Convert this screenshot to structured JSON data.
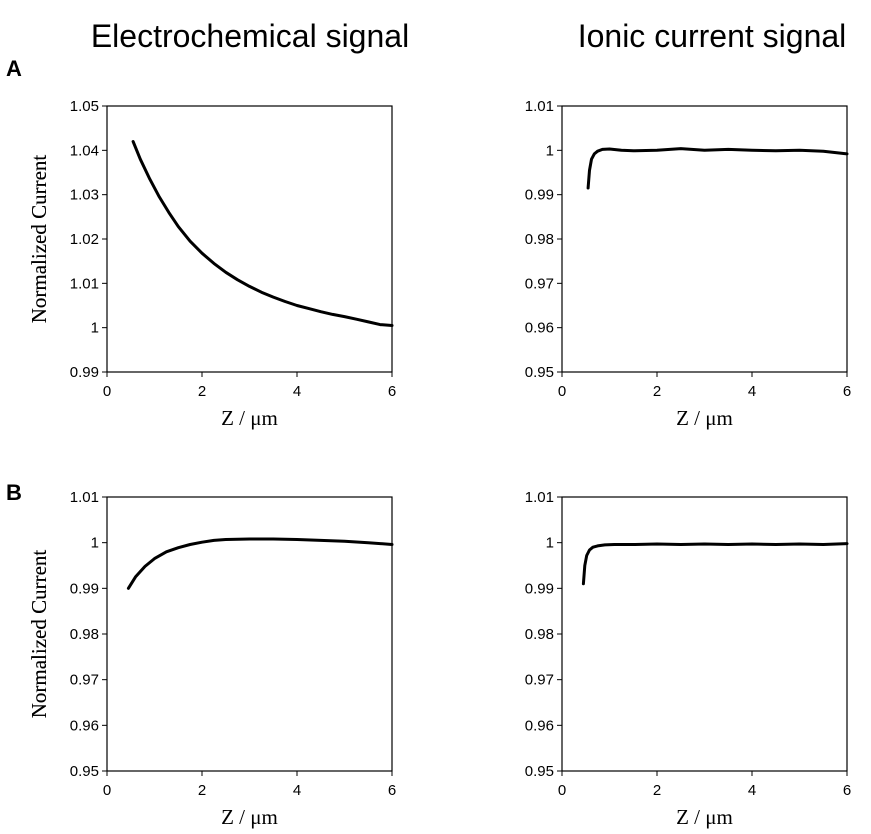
{
  "column_titles": [
    "Electrochemical signal",
    "Ionic current signal"
  ],
  "row_labels": [
    "A",
    "B"
  ],
  "chart_data": [
    {
      "type": "line",
      "panel": "A-left",
      "xlabel": "Z / μm",
      "ylabel": "Normalized Current",
      "xlim": [
        0,
        6
      ],
      "ylim": [
        0.99,
        1.05
      ],
      "xticks": [
        "0",
        "2",
        "4",
        "6"
      ],
      "yticks": [
        "0.99",
        "1",
        "1.01",
        "1.02",
        "1.03",
        "1.04",
        "1.05"
      ],
      "grid": false,
      "legend": "none",
      "series": [
        {
          "x": [
            0.55,
            0.7,
            0.9,
            1.1,
            1.3,
            1.5,
            1.75,
            2.0,
            2.25,
            2.5,
            2.75,
            3.0,
            3.25,
            3.5,
            3.75,
            4.0,
            4.25,
            4.5,
            4.75,
            5.0,
            5.25,
            5.5,
            5.75,
            6.0
          ],
          "y": [
            1.042,
            1.038,
            1.0335,
            1.0295,
            1.026,
            1.0228,
            1.0195,
            1.0168,
            1.0145,
            1.0125,
            1.0108,
            1.0093,
            1.008,
            1.0069,
            1.0059,
            1.005,
            1.0043,
            1.0036,
            1.003,
            1.0025,
            1.0019,
            1.0013,
            1.0007,
            1.0005
          ]
        }
      ]
    },
    {
      "type": "line",
      "panel": "A-right",
      "xlabel": "Z / μm",
      "ylabel": "Normalized Current",
      "xlim": [
        0,
        6
      ],
      "ylim": [
        0.95,
        1.01
      ],
      "xticks": [
        "0",
        "2",
        "4",
        "6"
      ],
      "yticks": [
        "0.95",
        "0.96",
        "0.97",
        "0.98",
        "0.99",
        "1",
        "1.01"
      ],
      "grid": false,
      "legend": "none",
      "series": [
        {
          "x": [
            0.55,
            0.58,
            0.62,
            0.68,
            0.75,
            0.85,
            1.0,
            1.25,
            1.5,
            2.0,
            2.5,
            3.0,
            3.5,
            4.0,
            4.5,
            5.0,
            5.5,
            6.0
          ],
          "y": [
            0.9915,
            0.9955,
            0.998,
            0.9992,
            0.9998,
            1.0002,
            1.0003,
            1.0,
            0.9999,
            1.0,
            1.0004,
            1.0,
            1.0002,
            1.0,
            0.9999,
            1.0,
            0.9998,
            0.9992
          ]
        }
      ]
    },
    {
      "type": "line",
      "panel": "B-left",
      "xlabel": "Z / μm",
      "ylabel": "Normalized Current",
      "xlim": [
        0,
        6
      ],
      "ylim": [
        0.95,
        1.01
      ],
      "xticks": [
        "0",
        "2",
        "4",
        "6"
      ],
      "yticks": [
        "0.95",
        "0.96",
        "0.97",
        "0.98",
        "0.99",
        "1",
        "1.01"
      ],
      "grid": false,
      "legend": "none",
      "series": [
        {
          "x": [
            0.45,
            0.6,
            0.8,
            1.0,
            1.25,
            1.5,
            1.75,
            2.0,
            2.25,
            2.5,
            3.0,
            3.5,
            4.0,
            4.5,
            5.0,
            5.5,
            6.0
          ],
          "y": [
            0.99,
            0.9925,
            0.9948,
            0.9965,
            0.998,
            0.9989,
            0.9996,
            1.0001,
            1.0005,
            1.0007,
            1.0008,
            1.0008,
            1.0007,
            1.0005,
            1.0003,
            1.0,
            0.9996
          ]
        }
      ]
    },
    {
      "type": "line",
      "panel": "B-right",
      "xlabel": "Z / μm",
      "ylabel": "Normalized Current",
      "xlim": [
        0,
        6
      ],
      "ylim": [
        0.95,
        1.01
      ],
      "xticks": [
        "0",
        "2",
        "4",
        "6"
      ],
      "yticks": [
        "0.95",
        "0.96",
        "0.97",
        "0.98",
        "0.99",
        "1",
        "1.01"
      ],
      "grid": false,
      "legend": "none",
      "series": [
        {
          "x": [
            0.45,
            0.48,
            0.52,
            0.58,
            0.65,
            0.75,
            0.9,
            1.1,
            1.5,
            2.0,
            2.5,
            3.0,
            3.5,
            4.0,
            4.5,
            5.0,
            5.5,
            6.0
          ],
          "y": [
            0.991,
            0.995,
            0.9972,
            0.9984,
            0.999,
            0.9993,
            0.9995,
            0.9996,
            0.9996,
            0.9997,
            0.9996,
            0.9997,
            0.9996,
            0.9997,
            0.9996,
            0.9997,
            0.9996,
            0.9998
          ]
        }
      ]
    }
  ]
}
